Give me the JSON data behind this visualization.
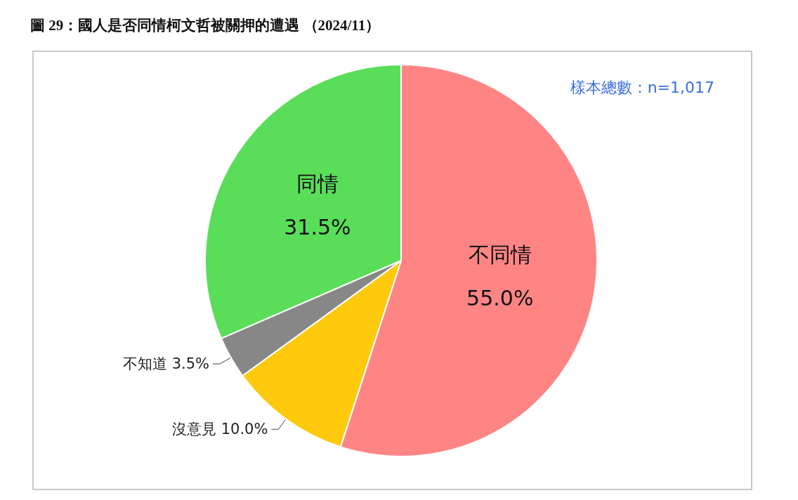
{
  "chart_data": {
    "type": "pie",
    "title": "圖 29：國人是否同情柯文哲被關押的遭遇 （2024/11）",
    "categories": [
      "不同情",
      "沒意見",
      "不知道",
      "同情"
    ],
    "values": [
      55.0,
      10.0,
      3.5,
      31.5
    ],
    "colors": [
      "#ff8585",
      "#ffc90e",
      "#878787",
      "#5ade5a"
    ],
    "value_labels": [
      "55.0%",
      "10.0%",
      "3.5%",
      "31.5%"
    ],
    "annotations": [
      "樣本總數：n=1,017"
    ]
  }
}
